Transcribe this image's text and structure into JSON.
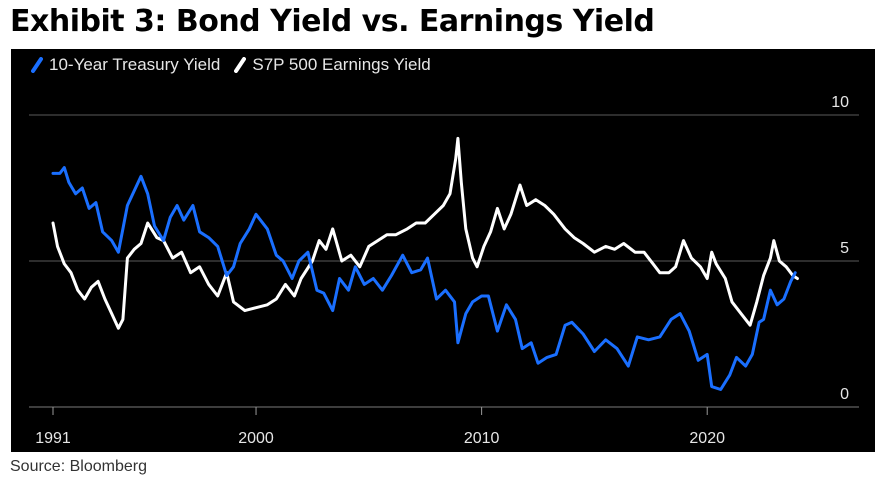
{
  "header": {
    "title": "Exhibit 3: Bond Yield vs. Earnings Yield"
  },
  "footer": {
    "source": "Source: Bloomberg"
  },
  "chart_data": {
    "type": "line",
    "title": "Exhibit 3: Bond Yield vs. Earnings Yield",
    "xlabel": "",
    "ylabel": "",
    "xlim": [
      1991,
      2025
    ],
    "ylim": [
      0,
      10
    ],
    "x_ticks": [
      1991,
      2000,
      2010,
      2020
    ],
    "y_ticks": [
      0,
      5,
      10
    ],
    "grid": "horizontal at 5 and 10",
    "legend_position": "top-left",
    "background": "#000000",
    "series": [
      {
        "name": "10-Year Treasury Yield",
        "color": "#1a6fff",
        "points": [
          [
            1991.0,
            8.0
          ],
          [
            1991.3,
            8.0
          ],
          [
            1991.5,
            8.2
          ],
          [
            1991.7,
            7.7
          ],
          [
            1992.0,
            7.3
          ],
          [
            1992.3,
            7.5
          ],
          [
            1992.6,
            6.8
          ],
          [
            1992.9,
            7.0
          ],
          [
            1993.2,
            6.0
          ],
          [
            1993.6,
            5.7
          ],
          [
            1993.9,
            5.3
          ],
          [
            1994.3,
            6.9
          ],
          [
            1994.6,
            7.4
          ],
          [
            1994.9,
            7.9
          ],
          [
            1995.2,
            7.3
          ],
          [
            1995.5,
            6.2
          ],
          [
            1995.9,
            5.7
          ],
          [
            1996.2,
            6.5
          ],
          [
            1996.5,
            6.9
          ],
          [
            1996.8,
            6.4
          ],
          [
            1997.2,
            6.9
          ],
          [
            1997.5,
            6.0
          ],
          [
            1997.9,
            5.8
          ],
          [
            1998.3,
            5.5
          ],
          [
            1998.7,
            4.5
          ],
          [
            1999.0,
            4.8
          ],
          [
            1999.3,
            5.6
          ],
          [
            1999.7,
            6.1
          ],
          [
            2000.0,
            6.6
          ],
          [
            2000.5,
            6.1
          ],
          [
            2000.9,
            5.2
          ],
          [
            2001.2,
            5.0
          ],
          [
            2001.6,
            4.4
          ],
          [
            2001.9,
            5.0
          ],
          [
            2002.3,
            5.3
          ],
          [
            2002.7,
            4.0
          ],
          [
            2003.0,
            3.9
          ],
          [
            2003.4,
            3.3
          ],
          [
            2003.7,
            4.4
          ],
          [
            2004.1,
            4.0
          ],
          [
            2004.4,
            4.8
          ],
          [
            2004.8,
            4.2
          ],
          [
            2005.2,
            4.4
          ],
          [
            2005.6,
            4.0
          ],
          [
            2006.0,
            4.5
          ],
          [
            2006.5,
            5.2
          ],
          [
            2006.9,
            4.6
          ],
          [
            2007.3,
            4.7
          ],
          [
            2007.6,
            5.1
          ],
          [
            2008.0,
            3.7
          ],
          [
            2008.4,
            4.0
          ],
          [
            2008.8,
            3.6
          ],
          [
            2008.95,
            2.2
          ],
          [
            2009.3,
            3.2
          ],
          [
            2009.6,
            3.6
          ],
          [
            2010.0,
            3.8
          ],
          [
            2010.3,
            3.8
          ],
          [
            2010.7,
            2.6
          ],
          [
            2011.1,
            3.5
          ],
          [
            2011.5,
            3.0
          ],
          [
            2011.8,
            2.0
          ],
          [
            2012.2,
            2.2
          ],
          [
            2012.5,
            1.5
          ],
          [
            2012.9,
            1.7
          ],
          [
            2013.3,
            1.8
          ],
          [
            2013.7,
            2.8
          ],
          [
            2014.0,
            2.9
          ],
          [
            2014.5,
            2.5
          ],
          [
            2015.0,
            1.9
          ],
          [
            2015.5,
            2.3
          ],
          [
            2016.0,
            2.0
          ],
          [
            2016.5,
            1.4
          ],
          [
            2016.9,
            2.4
          ],
          [
            2017.4,
            2.3
          ],
          [
            2017.9,
            2.4
          ],
          [
            2018.4,
            3.0
          ],
          [
            2018.8,
            3.2
          ],
          [
            2019.2,
            2.6
          ],
          [
            2019.6,
            1.6
          ],
          [
            2020.0,
            1.8
          ],
          [
            2020.2,
            0.7
          ],
          [
            2020.6,
            0.6
          ],
          [
            2021.0,
            1.1
          ],
          [
            2021.3,
            1.7
          ],
          [
            2021.7,
            1.4
          ],
          [
            2022.0,
            1.8
          ],
          [
            2022.3,
            2.9
          ],
          [
            2022.5,
            3.0
          ],
          [
            2022.8,
            4.0
          ],
          [
            2023.1,
            3.5
          ],
          [
            2023.4,
            3.7
          ],
          [
            2023.7,
            4.3
          ],
          [
            2023.9,
            4.6
          ]
        ]
      },
      {
        "name": "S7P 500 Earnings Yield",
        "color": "#ffffff",
        "points": [
          [
            1991.0,
            6.3
          ],
          [
            1991.2,
            5.5
          ],
          [
            1991.5,
            4.9
          ],
          [
            1991.8,
            4.6
          ],
          [
            1992.1,
            4.0
          ],
          [
            1992.4,
            3.7
          ],
          [
            1992.7,
            4.1
          ],
          [
            1993.0,
            4.3
          ],
          [
            1993.3,
            3.7
          ],
          [
            1993.6,
            3.2
          ],
          [
            1993.9,
            2.7
          ],
          [
            1994.1,
            3.0
          ],
          [
            1994.3,
            5.1
          ],
          [
            1994.6,
            5.4
          ],
          [
            1994.9,
            5.6
          ],
          [
            1995.2,
            6.3
          ],
          [
            1995.6,
            5.8
          ],
          [
            1995.9,
            5.7
          ],
          [
            1996.3,
            5.1
          ],
          [
            1996.7,
            5.3
          ],
          [
            1997.1,
            4.6
          ],
          [
            1997.5,
            4.8
          ],
          [
            1997.9,
            4.2
          ],
          [
            1998.3,
            3.8
          ],
          [
            1998.7,
            4.6
          ],
          [
            1999.0,
            3.6
          ],
          [
            1999.5,
            3.3
          ],
          [
            2000.0,
            3.4
          ],
          [
            2000.5,
            3.5
          ],
          [
            2000.9,
            3.7
          ],
          [
            2001.3,
            4.2
          ],
          [
            2001.7,
            3.8
          ],
          [
            2002.0,
            4.4
          ],
          [
            2002.5,
            5.0
          ],
          [
            2002.8,
            5.7
          ],
          [
            2003.1,
            5.4
          ],
          [
            2003.4,
            6.1
          ],
          [
            2003.8,
            5.0
          ],
          [
            2004.2,
            5.2
          ],
          [
            2004.6,
            4.8
          ],
          [
            2005.0,
            5.5
          ],
          [
            2005.4,
            5.7
          ],
          [
            2005.8,
            5.9
          ],
          [
            2006.2,
            5.9
          ],
          [
            2006.7,
            6.1
          ],
          [
            2007.1,
            6.3
          ],
          [
            2007.5,
            6.3
          ],
          [
            2007.9,
            6.6
          ],
          [
            2008.3,
            6.9
          ],
          [
            2008.6,
            7.3
          ],
          [
            2008.85,
            8.5
          ],
          [
            2008.95,
            9.2
          ],
          [
            2009.1,
            7.7
          ],
          [
            2009.3,
            6.1
          ],
          [
            2009.6,
            5.1
          ],
          [
            2009.8,
            4.8
          ],
          [
            2010.1,
            5.5
          ],
          [
            2010.4,
            6.0
          ],
          [
            2010.7,
            6.8
          ],
          [
            2011.0,
            6.1
          ],
          [
            2011.3,
            6.6
          ],
          [
            2011.7,
            7.6
          ],
          [
            2012.0,
            6.9
          ],
          [
            2012.4,
            7.1
          ],
          [
            2012.8,
            6.9
          ],
          [
            2013.2,
            6.6
          ],
          [
            2013.7,
            6.1
          ],
          [
            2014.1,
            5.8
          ],
          [
            2014.5,
            5.6
          ],
          [
            2015.0,
            5.3
          ],
          [
            2015.5,
            5.5
          ],
          [
            2015.9,
            5.4
          ],
          [
            2016.3,
            5.6
          ],
          [
            2016.8,
            5.3
          ],
          [
            2017.2,
            5.3
          ],
          [
            2017.6,
            4.9
          ],
          [
            2017.9,
            4.6
          ],
          [
            2018.3,
            4.6
          ],
          [
            2018.6,
            4.8
          ],
          [
            2018.95,
            5.7
          ],
          [
            2019.3,
            5.1
          ],
          [
            2019.7,
            4.8
          ],
          [
            2020.0,
            4.4
          ],
          [
            2020.2,
            5.3
          ],
          [
            2020.4,
            4.9
          ],
          [
            2020.8,
            4.4
          ],
          [
            2021.1,
            3.6
          ],
          [
            2021.5,
            3.2
          ],
          [
            2021.9,
            2.8
          ],
          [
            2022.2,
            3.6
          ],
          [
            2022.5,
            4.5
          ],
          [
            2022.8,
            5.1
          ],
          [
            2022.95,
            5.7
          ],
          [
            2023.2,
            5.0
          ],
          [
            2023.5,
            4.8
          ],
          [
            2023.8,
            4.5
          ],
          [
            2024.0,
            4.4
          ]
        ]
      }
    ]
  }
}
